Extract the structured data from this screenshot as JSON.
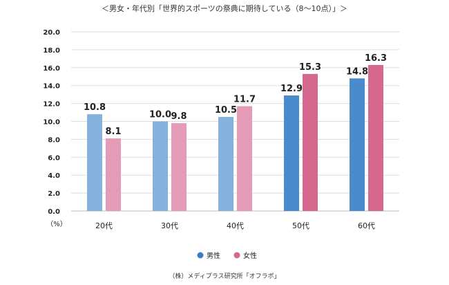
{
  "chart_data": {
    "type": "bar",
    "title": "＜男女・年代別「世界的スポーツの祭典に期待している（8〜10点）」＞",
    "y_unit": "（%）",
    "categories": [
      "20代",
      "30代",
      "40代",
      "50代",
      "60代"
    ],
    "series": [
      {
        "name": "男性",
        "values": [
          10.8,
          10.0,
          10.5,
          12.9,
          14.8
        ],
        "colors": [
          "#85b2dd",
          "#85b2dd",
          "#85b2dd",
          "#4a8bcb",
          "#4a8bcb"
        ],
        "legend_color": "#3a7dc4"
      },
      {
        "name": "女性",
        "values": [
          8.1,
          9.8,
          11.7,
          15.3,
          16.3
        ],
        "colors": [
          "#e59ab8",
          "#e59ab8",
          "#e59ab8",
          "#d4688f",
          "#d4688f"
        ],
        "legend_color": "#d4688f"
      }
    ],
    "value_labels": [
      [
        "10.8",
        "10.0",
        "10.5",
        "12.9",
        "14.8"
      ],
      [
        "8.1",
        "9.8",
        "11.7",
        "15.3",
        "16.3"
      ]
    ],
    "ylim": [
      0,
      20
    ],
    "y_ticks": [
      "0.0",
      "2.0",
      "4.0",
      "6.0",
      "8.0",
      "10.0",
      "12.0",
      "14.0",
      "16.0",
      "18.0",
      "20.0"
    ],
    "grid": true,
    "legend_position": "bottom-center",
    "source": "（株）メディプラス研究所「オフラボ」"
  }
}
